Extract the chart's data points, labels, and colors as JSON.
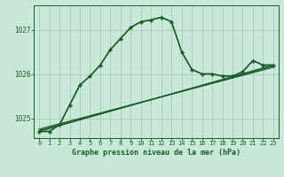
{
  "title": "Graphe pression niveau de la mer (hPa)",
  "background_color": "#c8e8d8",
  "grid_color": "#a8c8b8",
  "line_color": "#1a5c28",
  "xlim": [
    -0.5,
    23.5
  ],
  "ylim": [
    1024.55,
    1027.55
  ],
  "yticks": [
    1025,
    1026,
    1027
  ],
  "xticks": [
    0,
    1,
    2,
    3,
    4,
    5,
    6,
    7,
    8,
    9,
    10,
    11,
    12,
    13,
    14,
    15,
    16,
    17,
    18,
    19,
    20,
    21,
    22,
    23
  ],
  "main_series": {
    "x": [
      0,
      1,
      2,
      3,
      4,
      5,
      6,
      7,
      8,
      9,
      10,
      11,
      12,
      13,
      14,
      15,
      16,
      17,
      18,
      19,
      20,
      21,
      22,
      23
    ],
    "y": [
      1024.7,
      1024.7,
      1024.85,
      1025.3,
      1025.75,
      1025.95,
      1026.2,
      1026.55,
      1026.8,
      1027.05,
      1027.18,
      1027.22,
      1027.28,
      1027.18,
      1026.5,
      1026.1,
      1026.0,
      1026.0,
      1025.95,
      1025.95,
      1026.05,
      1026.3,
      1026.2,
      1026.2
    ]
  },
  "straight_lines": [
    {
      "x0": 0,
      "y0": 1024.7,
      "x1": 23,
      "y1": 1026.2
    },
    {
      "x0": 0,
      "y0": 1024.72,
      "x1": 23,
      "y1": 1026.18
    },
    {
      "x0": 0,
      "y0": 1024.75,
      "x1": 23,
      "y1": 1026.15
    }
  ]
}
